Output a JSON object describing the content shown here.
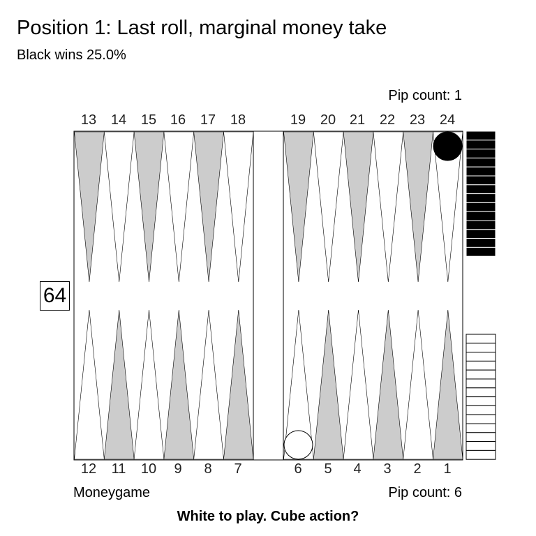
{
  "title": "Position 1: Last roll, marginal money take",
  "subtitle": "Black wins 25.0%",
  "pip_count_black": "Pip count: 1",
  "pip_count_white": "Pip count: 6",
  "match_type": "Moneygame",
  "prompt": "White to play. Cube action?",
  "cube_value": "64",
  "top_points": [
    "13",
    "14",
    "15",
    "16",
    "17",
    "18",
    "19",
    "20",
    "21",
    "22",
    "23",
    "24"
  ],
  "bottom_points": [
    "12",
    "11",
    "10",
    "9",
    "8",
    "7",
    "6",
    "5",
    "4",
    "3",
    "2",
    "1"
  ],
  "checkers": {
    "black": [
      {
        "point": 24,
        "count": 1
      }
    ],
    "white": [
      {
        "point": 6,
        "count": 1
      }
    ]
  },
  "borne_off": {
    "black": 14,
    "white": 14
  },
  "colors": {
    "point_dark": "#cccccc",
    "point_light": "#ffffff",
    "black_checker": "#000000",
    "white_checker": "#ffffff"
  }
}
